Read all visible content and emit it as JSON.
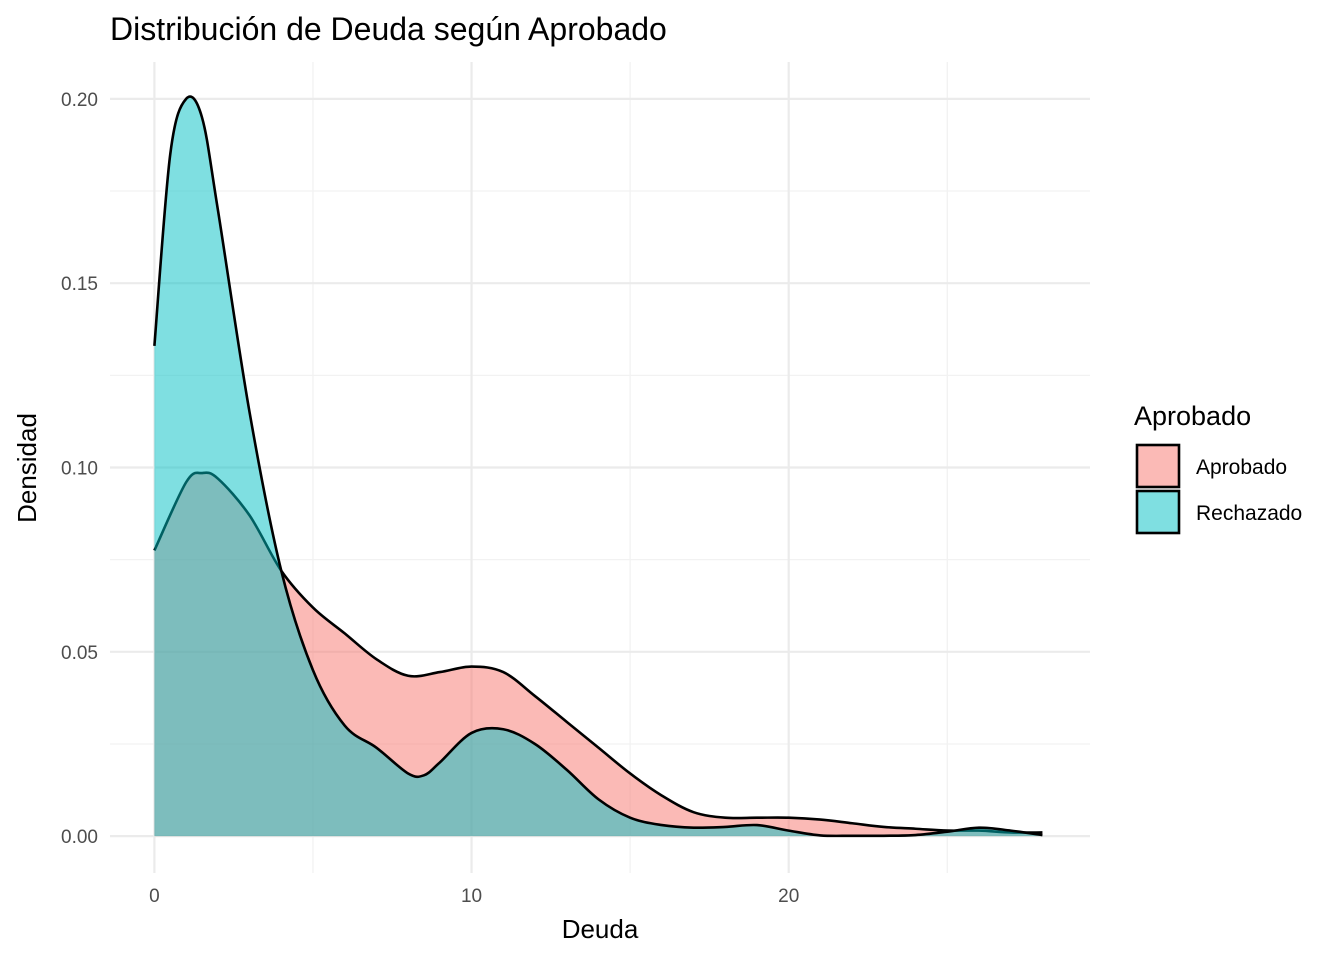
{
  "chart_data": {
    "type": "area",
    "subtype": "density",
    "title": "Distribución de Deuda según Aprobado",
    "xlabel": "Deuda",
    "ylabel": "Densidad",
    "xlim": [
      -1.4,
      29.5
    ],
    "ylim": [
      -0.01,
      0.21
    ],
    "x_ticks": [
      0,
      10,
      20
    ],
    "x_tick_labels": [
      "0",
      "10",
      "20"
    ],
    "y_ticks": [
      0.0,
      0.05,
      0.1,
      0.15,
      0.2
    ],
    "y_tick_labels": [
      "0.00",
      "0.05",
      "0.10",
      "0.15",
      "0.20"
    ],
    "grid": true,
    "legend": {
      "title": "Aprobado",
      "position": "right",
      "entries": [
        "Aprobado",
        "Rechazado"
      ]
    },
    "series": [
      {
        "name": "Aprobado",
        "color": "#F8766D",
        "fill_opacity": 0.5,
        "x": [
          0,
          1,
          1.5,
          2,
          3,
          4,
          5,
          6,
          7,
          8,
          9,
          10,
          11,
          12,
          13,
          14,
          15,
          16,
          17,
          18,
          19,
          20,
          21,
          22,
          23,
          24,
          25,
          26,
          27,
          28
        ],
        "values": [
          0.0775,
          0.096,
          0.0985,
          0.097,
          0.087,
          0.072,
          0.062,
          0.055,
          0.048,
          0.0435,
          0.0445,
          0.046,
          0.0445,
          0.038,
          0.031,
          0.024,
          0.017,
          0.011,
          0.0065,
          0.005,
          0.005,
          0.005,
          0.0045,
          0.0035,
          0.0025,
          0.002,
          0.0015,
          0.0015,
          0.001,
          0.001
        ]
      },
      {
        "name": "Rechazado",
        "color": "#00BFC4",
        "fill_opacity": 0.5,
        "x": [
          0,
          0.5,
          1,
          1.5,
          2,
          3,
          4,
          5,
          6,
          7,
          8,
          8.5,
          9,
          10,
          11,
          12,
          13,
          14,
          15,
          16,
          17,
          18,
          19,
          20,
          21,
          22,
          23,
          24,
          25,
          26,
          27,
          28
        ],
        "values": [
          0.133,
          0.185,
          0.2,
          0.195,
          0.17,
          0.115,
          0.072,
          0.045,
          0.03,
          0.024,
          0.017,
          0.0165,
          0.02,
          0.028,
          0.029,
          0.025,
          0.018,
          0.01,
          0.005,
          0.003,
          0.0023,
          0.0025,
          0.003,
          0.0015,
          0.0002,
          0.0001,
          0.0001,
          0.0003,
          0.0012,
          0.0023,
          0.0015,
          0.0003
        ]
      }
    ]
  }
}
